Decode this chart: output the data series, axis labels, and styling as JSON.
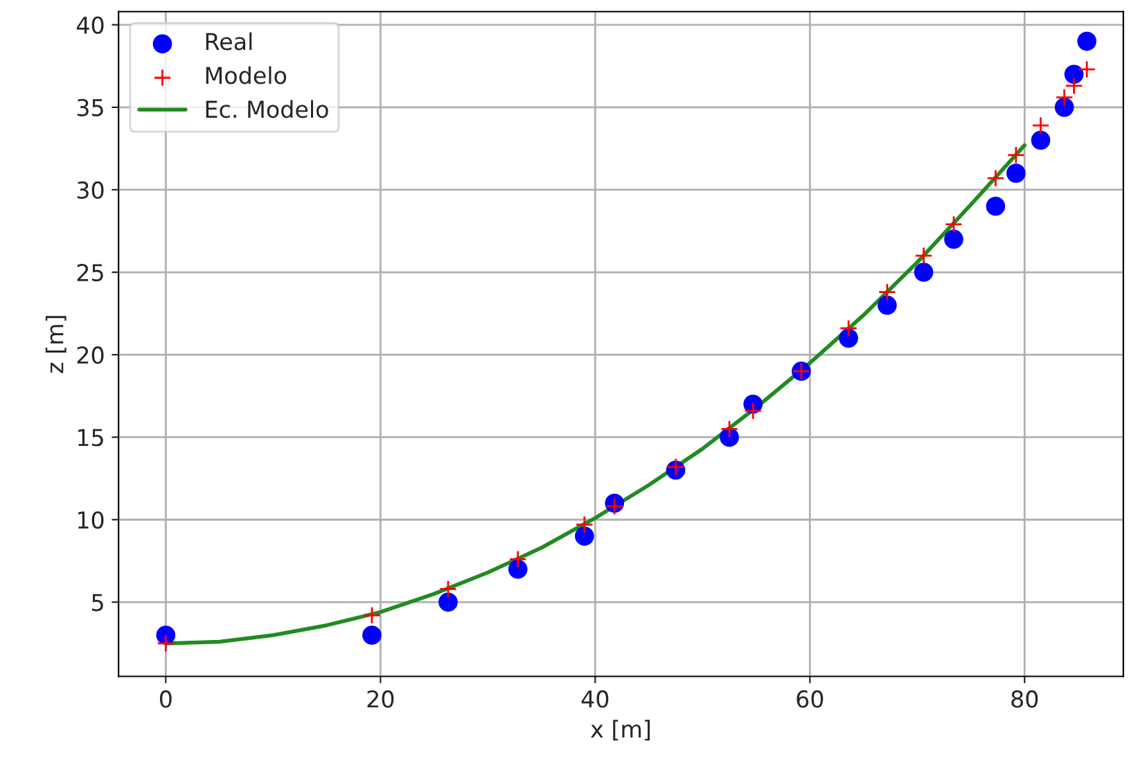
{
  "chart_data": {
    "type": "scatter",
    "xlabel": "x [m]",
    "ylabel": "z [m]",
    "xlim": [
      -4.4,
      89.2
    ],
    "ylim": [
      0.5,
      40.8
    ],
    "xticks": [
      0,
      20,
      40,
      60,
      80
    ],
    "yticks": [
      5,
      10,
      15,
      20,
      25,
      30,
      35,
      40
    ],
    "grid": true,
    "legend": "top left",
    "series": [
      {
        "name": "Real",
        "marker": "circle",
        "color": "#0000ff",
        "x": [
          0,
          19.2,
          26.3,
          32.8,
          39,
          41.8,
          47.5,
          52.5,
          54.7,
          59.2,
          63.6,
          67.2,
          70.6,
          73.4,
          77.3,
          79.2,
          81.5,
          83.7,
          84.6,
          85.8
        ],
        "values": [
          3,
          3,
          5,
          7,
          9,
          11,
          13,
          15,
          17,
          19,
          21,
          23,
          25,
          27,
          29,
          31,
          33,
          35,
          37,
          39
        ]
      },
      {
        "name": "Modelo",
        "marker": "cross",
        "color": "#ff0000",
        "x": [
          0,
          19.2,
          26.3,
          32.8,
          39,
          41.8,
          47.5,
          52.5,
          54.7,
          59.2,
          63.6,
          67.2,
          70.6,
          73.4,
          77.3,
          79.2,
          81.5,
          83.7,
          84.6,
          85.8
        ],
        "values": [
          2.5,
          4.2,
          5.8,
          7.6,
          9.7,
          10.8,
          13.2,
          15.5,
          16.6,
          19,
          21.6,
          23.8,
          26,
          27.9,
          30.7,
          32.1,
          33.9,
          35.6,
          36.3,
          37.3
        ]
      },
      {
        "name": "Ec. Modelo",
        "type": "line",
        "marker": "none",
        "line_style": "solid",
        "color": "#228b22",
        "x": [
          0,
          5,
          10,
          15,
          20,
          25,
          30,
          35,
          40,
          45,
          50,
          55,
          60,
          65,
          70,
          75,
          80
        ],
        "values": [
          2.5,
          2.6,
          3,
          3.6,
          4.4,
          5.5,
          6.8,
          8.3,
          10.1,
          12.1,
          14.3,
          16.8,
          19.5,
          22.4,
          25.6,
          29.1,
          32.7
        ]
      }
    ]
  }
}
